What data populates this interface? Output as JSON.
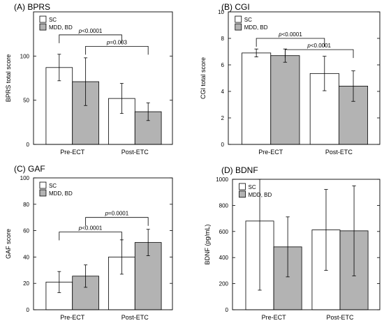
{
  "chart_data": [
    {
      "type": "bar",
      "title": "(A) BPRS",
      "ylabel": "BPRS total score",
      "xlabel": "",
      "categories": [
        "Pre-ECT",
        "Post-ETC"
      ],
      "ylim": [
        0,
        150
      ],
      "yticks": [
        0,
        50,
        100
      ],
      "grid": false,
      "legend_position": "top-left",
      "series": [
        {
          "name": "SC",
          "color": "#ffffff",
          "values": [
            87,
            52
          ],
          "error": [
            15,
            17
          ]
        },
        {
          "name": "MDD, BD",
          "color": "#b3b3b3",
          "values": [
            71,
            37
          ],
          "error": [
            27,
            10
          ]
        }
      ],
      "annotations": [
        {
          "prefix": "p",
          "text": "<0.0001",
          "from": [
            0,
            0
          ],
          "to": [
            1,
            0
          ],
          "level": 124
        },
        {
          "prefix": "p",
          "text": "=0.003",
          "from": [
            0,
            1
          ],
          "to": [
            1,
            1
          ],
          "level": 111
        }
      ]
    },
    {
      "type": "bar",
      "title": "(B) CGI",
      "ylabel": "CGI total score",
      "xlabel": "",
      "categories": [
        "Pre-ECT",
        "Post-ETC"
      ],
      "ylim": [
        0,
        10
      ],
      "yticks": [
        0,
        2,
        4,
        6,
        8,
        10
      ],
      "grid": false,
      "legend_position": "top-left",
      "series": [
        {
          "name": "SC",
          "color": "#ffffff",
          "values": [
            6.9,
            5.35
          ],
          "error": [
            0.3,
            1.3
          ]
        },
        {
          "name": "MDD, BD",
          "color": "#b3b3b3",
          "values": [
            6.7,
            4.4
          ],
          "error": [
            0.5,
            1.15
          ]
        }
      ],
      "annotations": [
        {
          "prefix": "p",
          "text": "<0.0001",
          "from": [
            0,
            0
          ],
          "to": [
            1,
            0
          ],
          "level": 8.0
        },
        {
          "prefix": "p",
          "text": "<0.0001",
          "from": [
            0,
            1
          ],
          "to": [
            1,
            1
          ],
          "level": 7.15
        }
      ]
    },
    {
      "type": "bar",
      "title": "(C) GAF",
      "ylabel": "GAF score",
      "xlabel": "",
      "categories": [
        "Pre-ECT",
        "Post-ETC"
      ],
      "ylim": [
        0,
        100
      ],
      "yticks": [
        0,
        20,
        40,
        60,
        80,
        100
      ],
      "grid": false,
      "legend_position": "top-left",
      "series": [
        {
          "name": "SC",
          "color": "#ffffff",
          "values": [
            21,
            40
          ],
          "error": [
            8,
            13
          ]
        },
        {
          "name": "MDD, BD",
          "color": "#b3b3b3",
          "values": [
            25.5,
            51
          ],
          "error": [
            8.5,
            10
          ]
        }
      ],
      "annotations": [
        {
          "prefix": "p",
          "text": "<0.0001",
          "from": [
            0,
            0
          ],
          "to": [
            1,
            0
          ],
          "level": 59
        },
        {
          "prefix": "p",
          "text": "=0.0001",
          "from": [
            0,
            1
          ],
          "to": [
            1,
            1
          ],
          "level": 70
        }
      ]
    },
    {
      "type": "bar",
      "title": "(D) BDNF",
      "ylabel": "BDNF (pg/mL)",
      "xlabel": "",
      "categories": [
        "Pre-ECT",
        "Post-ETC"
      ],
      "ylim": [
        0,
        1000
      ],
      "yticks": [
        0,
        200,
        400,
        600,
        800,
        1000
      ],
      "grid": false,
      "legend_position": "top-left",
      "series": [
        {
          "name": "SC",
          "color": "#ffffff",
          "values": [
            680,
            612
          ],
          "error": [
            530,
            310
          ]
        },
        {
          "name": "MDD, BD",
          "color": "#b3b3b3",
          "values": [
            482,
            605
          ],
          "error": [
            230,
            345
          ]
        }
      ],
      "annotations": []
    }
  ]
}
